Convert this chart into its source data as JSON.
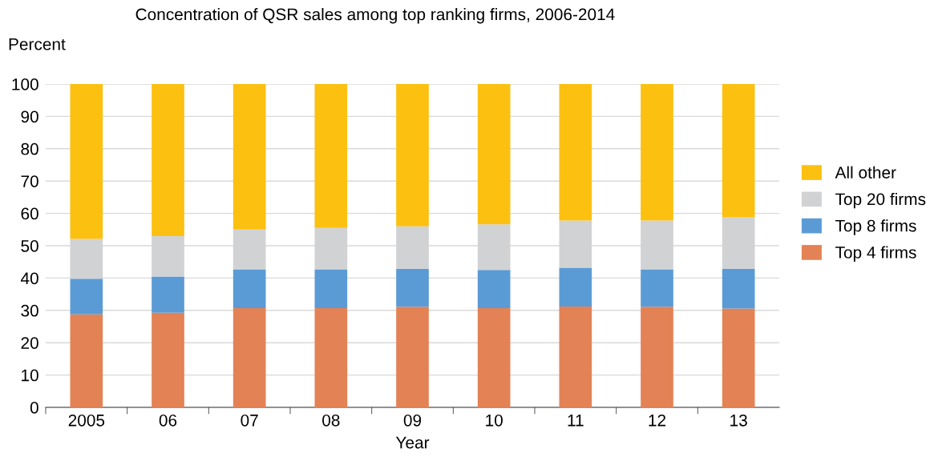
{
  "chart_data": {
    "type": "bar",
    "title": "Concentration of QSR sales among top ranking firms, 2006-2014",
    "ylabel": "Percent",
    "xlabel": "Year",
    "categories": [
      "2005",
      "06",
      "07",
      "08",
      "09",
      "10",
      "11",
      "12",
      "13"
    ],
    "stacked": true,
    "series": [
      {
        "name": "Top 4 firms",
        "color": "#e38255",
        "values": [
          28.8,
          29.3,
          30.7,
          30.7,
          31.1,
          30.7,
          31.2,
          31.1,
          30.6
        ]
      },
      {
        "name": "Top 8 firms",
        "color": "#5b9bd5",
        "values": [
          11.0,
          11.2,
          12.0,
          12.0,
          11.8,
          11.8,
          12.0,
          11.6,
          12.3
        ]
      },
      {
        "name": "Top 20 firms",
        "color": "#d1d2d4",
        "values": [
          12.3,
          12.5,
          12.3,
          12.8,
          13.1,
          14.1,
          14.6,
          15.1,
          15.9
        ]
      },
      {
        "name": "All other",
        "color": "#fcc010",
        "values": [
          47.9,
          47.0,
          45.0,
          44.5,
          44.0,
          43.4,
          42.2,
          42.2,
          41.2
        ]
      }
    ],
    "ylim": [
      0,
      100
    ],
    "yticks": [
      0,
      10,
      20,
      30,
      40,
      50,
      60,
      70,
      80,
      90,
      100
    ],
    "grid": "y",
    "legend": "right"
  }
}
